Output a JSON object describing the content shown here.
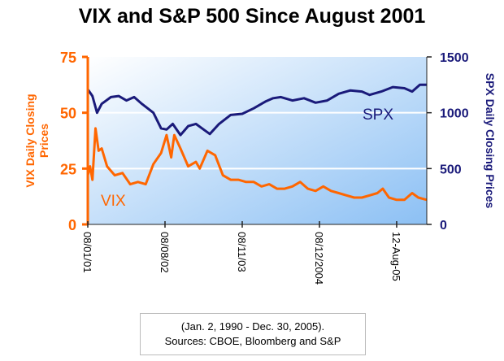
{
  "chart_data": {
    "type": "line",
    "title": "VIX and S&P 500 Since August 2001",
    "ylabel_left": "VIX Daily Closing Prices",
    "ylabel_right": "SPX Daily Closing Prices",
    "ylim_left": [
      0,
      75
    ],
    "ylim_right": [
      0,
      1500
    ],
    "yticks_left": [
      "0",
      "25",
      "50",
      "75"
    ],
    "yticks_right": [
      "0",
      "500",
      "1000",
      "1500"
    ],
    "xlim": [
      2001.6,
      2005.99
    ],
    "xticks": [
      {
        "x": 2001.6,
        "label": "08/01/01"
      },
      {
        "x": 2002.6,
        "label": "08/08/02"
      },
      {
        "x": 2003.6,
        "label": "08/11/03"
      },
      {
        "x": 2004.6,
        "label": "08/12/2004"
      },
      {
        "x": 2005.6,
        "label": "12-Aug-05"
      }
    ],
    "grid": true,
    "colors": {
      "vix": "#ff6600",
      "spx": "#1a1a7a"
    },
    "series": [
      {
        "name": "VIX",
        "axis": "left",
        "x": [
          2001.6,
          2001.63,
          2001.66,
          2001.7,
          2001.74,
          2001.78,
          2001.85,
          2001.95,
          2002.05,
          2002.15,
          2002.25,
          2002.35,
          2002.45,
          2002.55,
          2002.62,
          2002.68,
          2002.72,
          2002.8,
          2002.9,
          2003.0,
          2003.05,
          2003.15,
          2003.25,
          2003.35,
          2003.45,
          2003.55,
          2003.65,
          2003.75,
          2003.85,
          2003.95,
          2004.05,
          2004.15,
          2004.25,
          2004.35,
          2004.45,
          2004.55,
          2004.65,
          2004.75,
          2004.85,
          2004.95,
          2005.05,
          2005.15,
          2005.25,
          2005.35,
          2005.42,
          2005.5,
          2005.6,
          2005.7,
          2005.8,
          2005.88,
          2005.99
        ],
        "values": [
          22,
          26,
          20,
          43,
          33,
          34,
          26,
          22,
          23,
          18,
          19,
          18,
          27,
          32,
          40,
          30,
          40,
          34,
          26,
          28,
          25,
          33,
          31,
          22,
          20,
          20,
          19,
          19,
          17,
          18,
          16,
          16,
          17,
          19,
          16,
          15,
          17,
          15,
          14,
          13,
          12,
          12,
          13,
          14,
          16,
          12,
          11,
          11,
          14,
          12,
          11
        ]
      },
      {
        "name": "SPX",
        "axis": "right",
        "x": [
          2001.6,
          2001.66,
          2001.72,
          2001.78,
          2001.9,
          2002.0,
          2002.1,
          2002.2,
          2002.3,
          2002.45,
          2002.55,
          2002.62,
          2002.7,
          2002.8,
          2002.9,
          2003.0,
          2003.1,
          2003.18,
          2003.3,
          2003.45,
          2003.6,
          2003.75,
          2003.9,
          2004.0,
          2004.1,
          2004.25,
          2004.4,
          2004.55,
          2004.7,
          2004.85,
          2005.0,
          2005.15,
          2005.25,
          2005.4,
          2005.55,
          2005.7,
          2005.8,
          2005.9,
          2005.99
        ],
        "values": [
          1210,
          1150,
          1000,
          1080,
          1140,
          1150,
          1110,
          1140,
          1080,
          1000,
          860,
          850,
          900,
          800,
          880,
          900,
          850,
          810,
          900,
          980,
          990,
          1040,
          1100,
          1130,
          1140,
          1110,
          1130,
          1090,
          1110,
          1170,
          1200,
          1190,
          1160,
          1190,
          1230,
          1220,
          1190,
          1250,
          1250
        ]
      }
    ],
    "annotations": [
      "VIX",
      "SPX"
    ],
    "note_line1": "(Jan. 2, 1990 - Dec. 30, 2005).",
    "note_line2": "Sources: CBOE, Bloomberg and S&P"
  }
}
